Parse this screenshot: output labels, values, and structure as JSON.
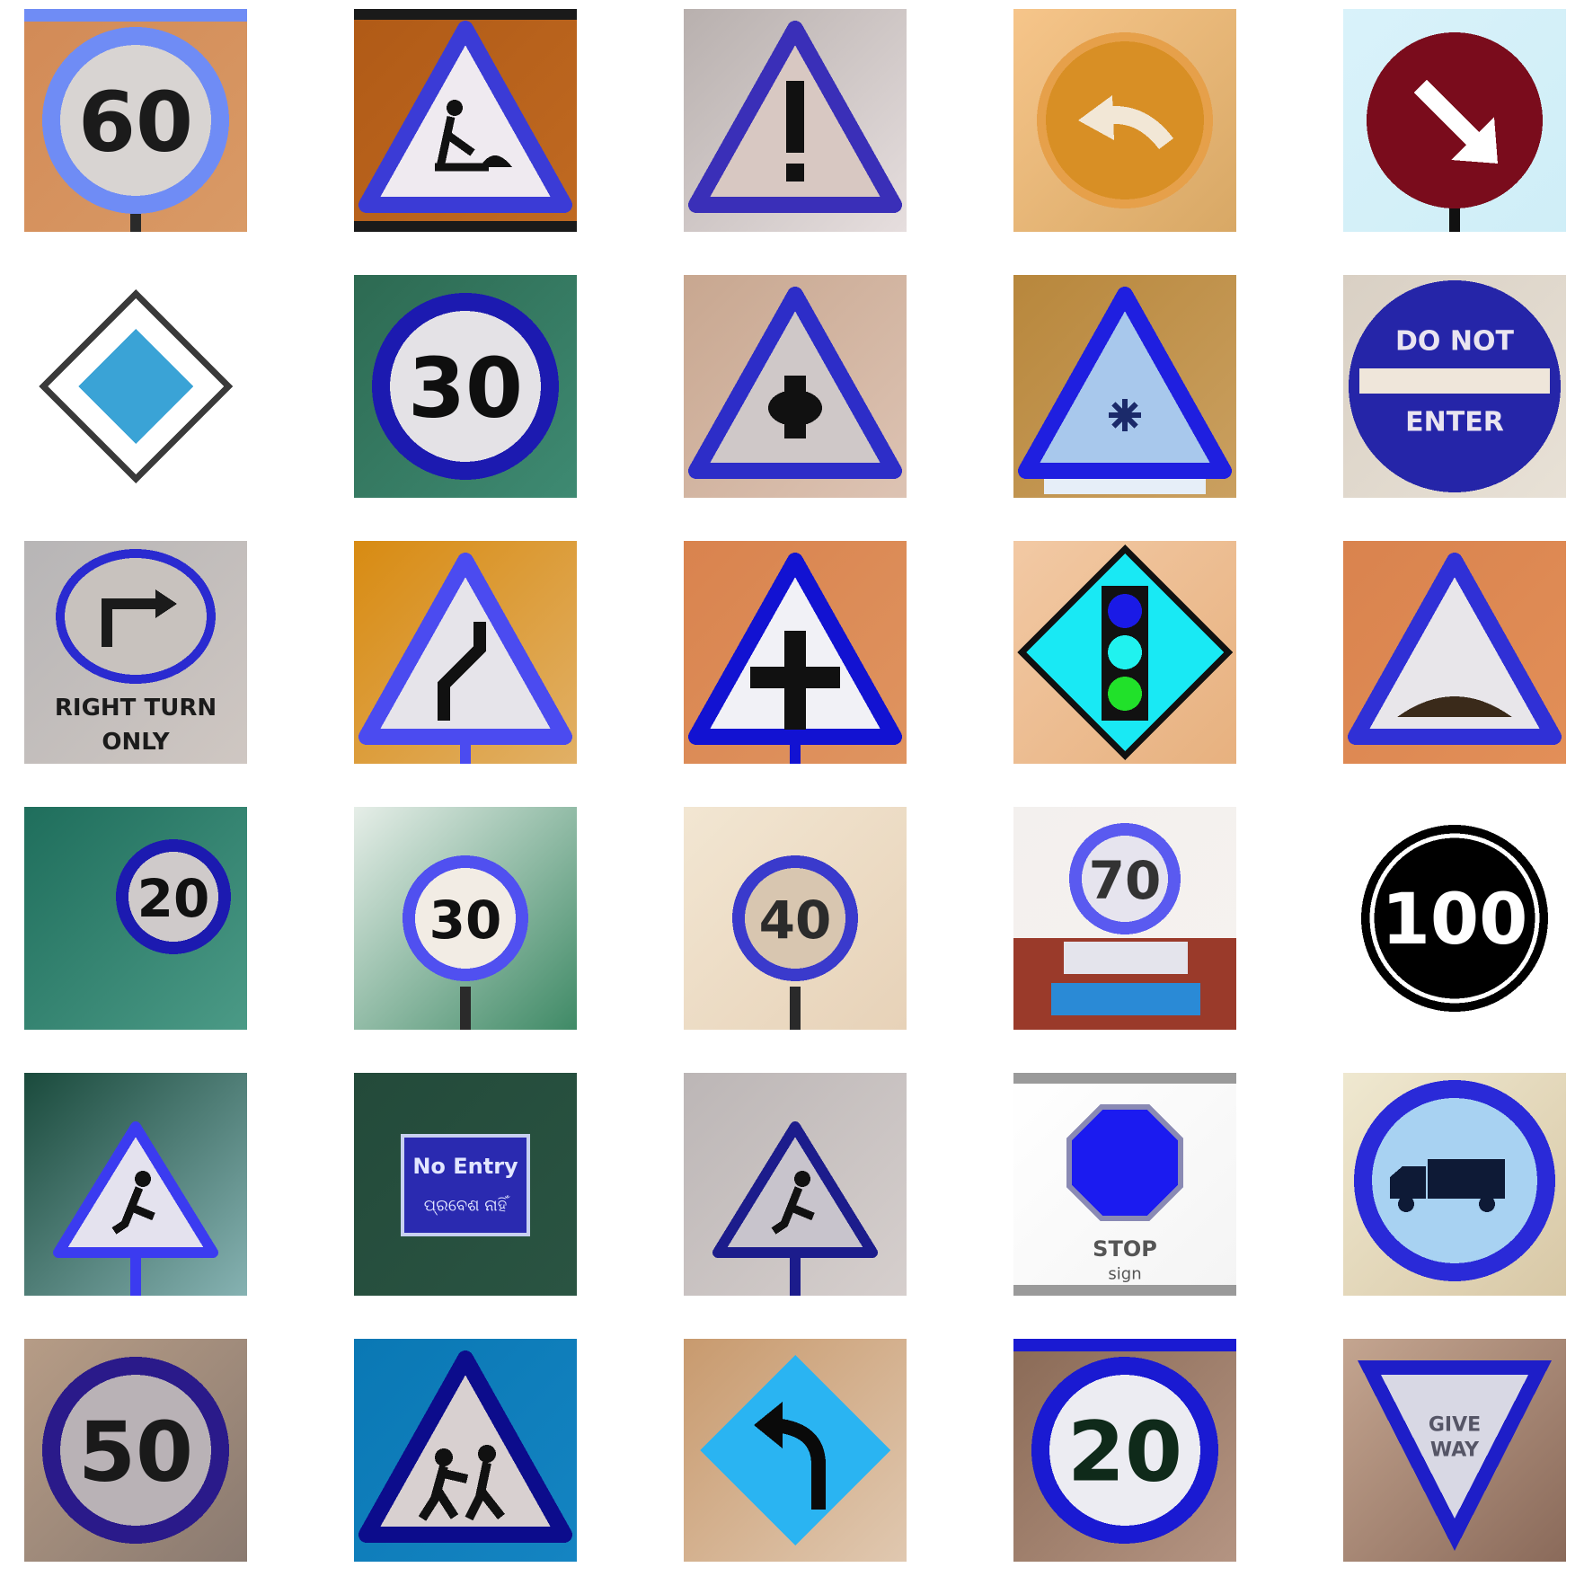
{
  "grid": {
    "columns": 5,
    "rows": 6,
    "background": "#ffffff"
  },
  "tiles": [
    {
      "kind": "round-number",
      "bg": [
        "#d28a56",
        "#d99a66"
      ],
      "ring": "#6f8cf5",
      "face": "#d8d4d2",
      "text": "60",
      "textColor": "#1b1b1b",
      "topBar": "#6f8cf5",
      "post": true,
      "icon": "speed-limit-sign"
    },
    {
      "kind": "triangle-symbol",
      "bg": [
        "#b05a16",
        "#c06a22"
      ],
      "border": "#3b3bd6",
      "face": "#efeaf0",
      "symbol": "roadwork",
      "frame": "#1a1a1a",
      "icon": "roadwork-warning-sign"
    },
    {
      "kind": "triangle-symbol",
      "bg": [
        "#b8b0ae",
        "#e6dede"
      ],
      "border": "#3a2fb8",
      "face": "#d8c8c2",
      "symbol": "exclamation",
      "icon": "general-warning-sign"
    },
    {
      "kind": "round-arrow",
      "bg": [
        "#f6c58a",
        "#d8a865"
      ],
      "ring": "#e6a04a",
      "face": "#d88f25",
      "arrowColor": "#f2e7d6",
      "arrow": "curve-left",
      "icon": "curve-arrow-sign"
    },
    {
      "kind": "round-arrow",
      "bg": [
        "#d9f2fa",
        "#cfeef7"
      ],
      "ring": "#7a0c1c",
      "face": "#7a0c1c",
      "arrowColor": "#ffffff",
      "arrow": "diagonal-down-right",
      "icon": "diagonal-arrow-sign"
    },
    {
      "kind": "diamond",
      "bg": [
        "#ffffff",
        "#ffffff"
      ],
      "outer": "#3a3a3a",
      "face": "#ffffff",
      "inner": "#3aa3d6",
      "icon": "priority-road-sign"
    },
    {
      "kind": "round-number",
      "bg": [
        "#2d6a52",
        "#3e8a72"
      ],
      "ring": "#1c1ab0",
      "face": "#e4e2e6",
      "text": "30",
      "textColor": "#0f0f0f",
      "post": false,
      "icon": "speed-limit-sign"
    },
    {
      "kind": "triangle-symbol",
      "bg": [
        "#c8a790",
        "#ddc3b3"
      ],
      "border": "#2d2dc8",
      "face": "#cfc8c8",
      "symbol": "crossroads-blob",
      "icon": "intersection-warning-sign"
    },
    {
      "kind": "triangle-symbol",
      "bg": [
        "#b8873c",
        "#caa060"
      ],
      "border": "#1f1fe0",
      "face": "#a8c8ec",
      "symbol": "snowflake",
      "plate": true,
      "icon": "snow-warning-sign"
    },
    {
      "kind": "round-text",
      "bg": [
        "#d9d0c4",
        "#e8e1d6"
      ],
      "ring": "#2525a8",
      "face": "#2525a8",
      "bar": "#efe6da",
      "text1": "DO NOT",
      "text2": "ENTER",
      "textColor": "#e9e4f0",
      "icon": "do-not-enter-sign"
    },
    {
      "kind": "oval-text",
      "bg": [
        "#b7b5b6",
        "#cfc7c2"
      ],
      "ring": "#2a2ad0",
      "face": "#c8c2be",
      "arrow": "right-turn",
      "text1": "RIGHT TURN",
      "text2": "ONLY",
      "textColor": "#1b1b1b",
      "icon": "right-turn-only-sign"
    },
    {
      "kind": "triangle-symbol",
      "bg": [
        "#d88b12",
        "#e1b066"
      ],
      "border": "#4b4bf0",
      "face": "#e6e4ea",
      "symbol": "double-curve",
      "post": true,
      "icon": "winding-road-sign"
    },
    {
      "kind": "triangle-symbol",
      "bg": [
        "#d9834e",
        "#df9460"
      ],
      "border": "#1212d2",
      "face": "#f1f1f6",
      "symbol": "crossroads",
      "post": true,
      "icon": "crossroads-warning-sign"
    },
    {
      "kind": "signal-diamond",
      "bg": [
        "#f2c9a4",
        "#e7b17f"
      ],
      "face": "#19e9f4",
      "outline": "#111111",
      "lights": [
        "#1a1ae6",
        "#20f2ef",
        "#21e12a"
      ],
      "icon": "traffic-signal-sign"
    },
    {
      "kind": "triangle-symbol",
      "bg": [
        "#d9834e",
        "#e28f58"
      ],
      "border": "#3030d6",
      "face": "#e8e6ea",
      "symbol": "hump",
      "icon": "speed-hump-sign"
    },
    {
      "kind": "round-number",
      "bg": [
        "#1f6e5c",
        "#4b9a86"
      ],
      "ring": "#1c1ab0",
      "face": "#cfcaca",
      "text": "20",
      "textColor": "#111111",
      "offset": "right",
      "small": true,
      "icon": "speed-limit-sign"
    },
    {
      "kind": "round-number",
      "bg": [
        "#e6eee8",
        "#3f8a66"
      ],
      "ring": "#5050f0",
      "face": "#f2ece4",
      "text": "30",
      "textColor": "#111111",
      "small": true,
      "post": true,
      "icon": "speed-limit-sign"
    },
    {
      "kind": "round-number",
      "bg": [
        "#f2e6d2",
        "#e7d2b8"
      ],
      "ring": "#3a3acc",
      "face": "#d8c6b0",
      "text": "40",
      "textColor": "#2b2b2b",
      "small": true,
      "post": true,
      "icon": "speed-limit-sign"
    },
    {
      "kind": "round-number",
      "bg": [
        "#f3f0ee",
        "#f6f2ef"
      ],
      "ring": "#5a5af0",
      "face": "#e6e4ee",
      "text": "70",
      "textColor": "#333333",
      "small": true,
      "plates": true,
      "icon": "speed-limit-sign"
    },
    {
      "kind": "round-number",
      "bg": [
        "#ffffff",
        "#ffffff"
      ],
      "ring": "#000000",
      "face": "#000000",
      "text": "100",
      "textColor": "#ffffff",
      "whiteRing": true,
      "icon": "speed-limit-sign"
    },
    {
      "kind": "triangle-symbol",
      "bg": [
        "#1a4a3c",
        "#86b2b2"
      ],
      "border": "#3b3bf0",
      "face": "#e4e2ee",
      "symbol": "worker",
      "post": true,
      "small": true,
      "icon": "roadwork-warning-sign"
    },
    {
      "kind": "rect-text",
      "bg": [
        "#234a3a",
        "#2a5442"
      ],
      "plate": "#2a2ab0",
      "border": "#c8d0f0",
      "text1": "No Entry",
      "text2": "ପ୍ରବେଶ ନାହିଁ",
      "textColor": "#e2e6ff",
      "icon": "no-entry-sign"
    },
    {
      "kind": "triangle-symbol",
      "bg": [
        "#bcb6b6",
        "#d6cfcd"
      ],
      "border": "#1c1c8c",
      "face": "#c8c4cc",
      "symbol": "worker",
      "small": true,
      "post": true,
      "icon": "roadwork-warning-sign"
    },
    {
      "kind": "octagon",
      "bg": [
        "#ffffff",
        "#f4f4f4"
      ],
      "face": "#1b1bf0",
      "edge": "#8a8ab4",
      "text1": "STOP",
      "text2": "sign",
      "textColor": "#555555",
      "icon": "stop-sign"
    },
    {
      "kind": "round-truck",
      "bg": [
        "#efe8d0",
        "#d8c8a6"
      ],
      "ring": "#2a2ad8",
      "face": "#a8d2f2",
      "truck": "#0e1a36",
      "icon": "no-trucks-sign"
    },
    {
      "kind": "round-number",
      "bg": [
        "#b69c86",
        "#8a7a70"
      ],
      "ring": "#2a1a8a",
      "face": "#b9b2b6",
      "text": "50",
      "textColor": "#1a1a1a",
      "icon": "speed-limit-sign"
    },
    {
      "kind": "triangle-symbol",
      "bg": [
        "#0a78b4",
        "#1484c2"
      ],
      "border": "#0c0c8c",
      "face": "#d8d0d0",
      "symbol": "children",
      "icon": "children-crossing-sign"
    },
    {
      "kind": "diamond-arrow",
      "bg": [
        "#c89a6e",
        "#e0c8b0"
      ],
      "face": "#2ab4f2",
      "arrowColor": "#0a0a0a",
      "icon": "curve-left-warning-sign"
    },
    {
      "kind": "round-number",
      "bg": [
        "#8a6a56",
        "#b49482"
      ],
      "ring": "#1a1ad2",
      "face": "#ececf2",
      "text": "20",
      "textColor": "#0f2a1a",
      "topBar": "#1a1ad2",
      "icon": "speed-limit-sign"
    },
    {
      "kind": "yield",
      "bg": [
        "#c4a590",
        "#8a6a5a"
      ],
      "border": "#1e1ec8",
      "face": "#d8d8e4",
      "text1": "GIVE",
      "text2": "WAY",
      "textColor": "#555566",
      "icon": "give-way-sign"
    }
  ]
}
